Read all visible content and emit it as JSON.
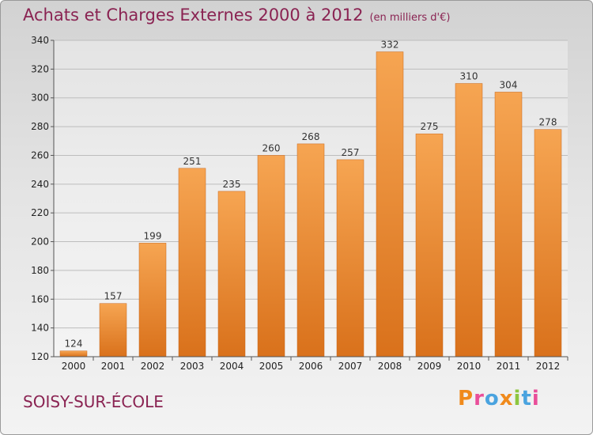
{
  "header": {
    "title": "Achats et Charges Externes 2000 à 2012",
    "subtitle": "(en milliers d'€)"
  },
  "footer": {
    "commune": "SOISY-SUR-ÉCOLE",
    "logo_letters": [
      {
        "char": "P",
        "color": "#f08a1c"
      },
      {
        "char": "r",
        "color": "#e94e9a"
      },
      {
        "char": "o",
        "color": "#4aa3df"
      },
      {
        "char": "x",
        "color": "#f08a1c"
      },
      {
        "char": "i",
        "color": "#8dc63f"
      },
      {
        "char": "t",
        "color": "#4aa3df"
      },
      {
        "char": "i",
        "color": "#e94e9a"
      }
    ]
  },
  "chart_data": {
    "type": "bar",
    "title": "Achats et Charges Externes 2000 à 2012",
    "subtitle": "(en milliers d'€)",
    "categories": [
      "2000",
      "2001",
      "2002",
      "2003",
      "2004",
      "2005",
      "2006",
      "2007",
      "2008",
      "2009",
      "2010",
      "2011",
      "2012"
    ],
    "values": [
      124,
      157,
      199,
      251,
      235,
      260,
      268,
      257,
      332,
      275,
      310,
      304,
      278
    ],
    "ylim": [
      120,
      340
    ],
    "yticks": [
      120,
      140,
      160,
      180,
      200,
      220,
      240,
      260,
      280,
      300,
      320,
      340
    ],
    "grid": true,
    "data_labels": true,
    "bar_color": "#f0902f"
  }
}
